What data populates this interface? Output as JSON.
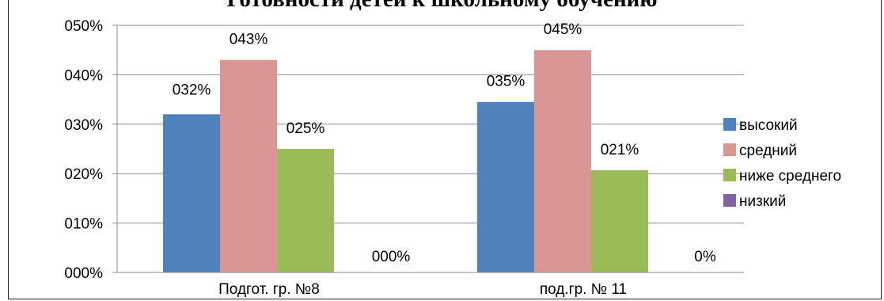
{
  "chart_data": {
    "type": "bar",
    "title": "Готовности детей к школьному обучению",
    "xlabel": "",
    "ylabel": "",
    "categories": [
      "Подгот. гр. №8",
      "под.гр. № 11"
    ],
    "y_ticks": [
      "000%",
      "010%",
      "020%",
      "030%",
      "040%",
      "050%"
    ],
    "ylim": [
      0,
      0.5
    ],
    "grid": true,
    "legend_position": "right",
    "series": [
      {
        "name": "высокий",
        "color": "#4F81BD",
        "values": [
          0.32,
          0.345
        ],
        "labels": [
          "032%",
          "035%"
        ]
      },
      {
        "name": "средний",
        "color": "#D99694",
        "values": [
          0.43,
          0.45
        ],
        "labels": [
          "043%",
          "045%"
        ]
      },
      {
        "name": "ниже среднего",
        "color": "#9BBB59",
        "values": [
          0.25,
          0.207
        ],
        "labels": [
          "025%",
          "021%"
        ]
      },
      {
        "name": "низкий",
        "color": "#8064A2",
        "values": [
          0.0,
          0.0
        ],
        "labels": [
          "000%",
          "0%"
        ]
      }
    ]
  }
}
